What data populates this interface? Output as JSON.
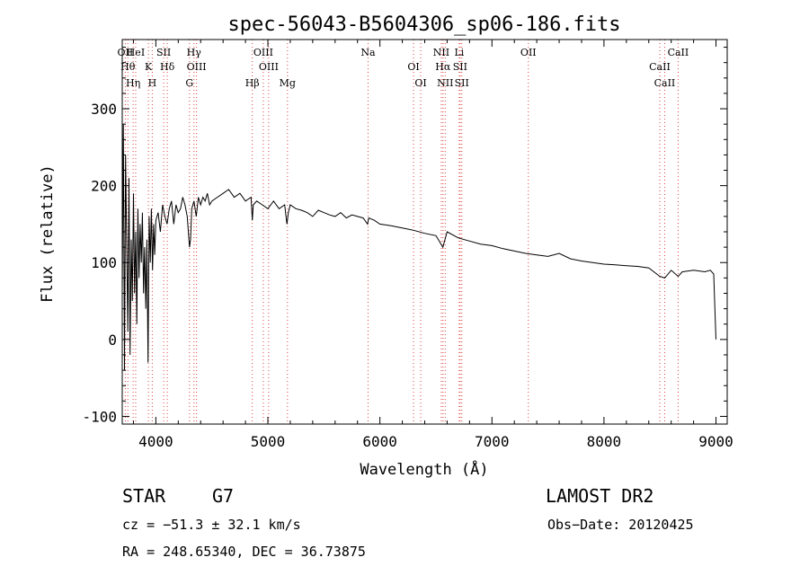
{
  "chart_data": {
    "type": "line",
    "title": "spec-56043-B5604306_sp06-186.fits",
    "xlabel": "Wavelength (Å)",
    "ylabel": "Flux (relative)",
    "xlim": [
      3700,
      9100
    ],
    "ylim": [
      -110,
      390
    ],
    "xticks": [
      4000,
      5000,
      6000,
      7000,
      8000,
      9000
    ],
    "yticks": [
      -100,
      0,
      100,
      200,
      300
    ],
    "grid": false,
    "series": [
      {
        "name": "spectrum",
        "x": [
          3700,
          3710,
          3720,
          3730,
          3740,
          3750,
          3760,
          3770,
          3780,
          3790,
          3800,
          3810,
          3820,
          3830,
          3840,
          3850,
          3860,
          3870,
          3880,
          3890,
          3900,
          3910,
          3920,
          3930,
          3940,
          3950,
          3960,
          3970,
          3980,
          3990,
          4000,
          4020,
          4040,
          4060,
          4080,
          4100,
          4120,
          4140,
          4160,
          4180,
          4200,
          4220,
          4240,
          4260,
          4280,
          4300,
          4310,
          4320,
          4340,
          4360,
          4380,
          4400,
          4420,
          4440,
          4460,
          4480,
          4500,
          4550,
          4600,
          4650,
          4700,
          4750,
          4800,
          4850,
          4861,
          4870,
          4900,
          4950,
          5000,
          5050,
          5100,
          5150,
          5170,
          5183,
          5200,
          5250,
          5300,
          5350,
          5400,
          5450,
          5500,
          5550,
          5600,
          5650,
          5700,
          5750,
          5800,
          5850,
          5890,
          5900,
          5950,
          6000,
          6100,
          6200,
          6300,
          6400,
          6500,
          6562,
          6600,
          6700,
          6800,
          6900,
          7000,
          7100,
          7200,
          7300,
          7400,
          7500,
          7600,
          7700,
          7800,
          7900,
          8000,
          8100,
          8200,
          8300,
          8400,
          8498,
          8542,
          8600,
          8662,
          8700,
          8800,
          8900,
          8950,
          8980,
          8990,
          9000
        ],
        "y": [
          60,
          280,
          -40,
          240,
          120,
          10,
          210,
          -20,
          130,
          50,
          190,
          60,
          140,
          20,
          170,
          80,
          150,
          100,
          165,
          60,
          120,
          40,
          130,
          -30,
          160,
          100,
          170,
          90,
          150,
          110,
          155,
          165,
          140,
          175,
          160,
          150,
          170,
          180,
          150,
          175,
          165,
          170,
          185,
          175,
          160,
          120,
          130,
          170,
          180,
          160,
          185,
          175,
          185,
          180,
          190,
          175,
          180,
          185,
          190,
          195,
          185,
          190,
          180,
          185,
          155,
          175,
          180,
          175,
          170,
          180,
          170,
          175,
          150,
          165,
          175,
          170,
          168,
          165,
          160,
          168,
          165,
          162,
          160,
          165,
          158,
          162,
          160,
          158,
          150,
          158,
          155,
          150,
          148,
          145,
          142,
          138,
          135,
          120,
          140,
          132,
          128,
          124,
          122,
          118,
          115,
          112,
          110,
          108,
          112,
          105,
          102,
          100,
          98,
          97,
          96,
          95,
          93,
          82,
          80,
          90,
          82,
          88,
          90,
          88,
          90,
          85,
          40,
          0
        ]
      }
    ],
    "lines": [
      {
        "label": "OII",
        "x": 3727
      },
      {
        "label": "Hθ",
        "x": 3750
      },
      {
        "label": "Hη",
        "x": 3797
      },
      {
        "label": "HeI",
        "x": 3820
      },
      {
        "label": "K",
        "x": 3934
      },
      {
        "label": "H",
        "x": 3968
      },
      {
        "label": "SII",
        "x": 4070
      },
      {
        "label": "Hδ",
        "x": 4102
      },
      {
        "label": "G",
        "x": 4300
      },
      {
        "label": "Hγ",
        "x": 4340
      },
      {
        "label": "OIII",
        "x": 4363
      },
      {
        "label": "Hβ",
        "x": 4861
      },
      {
        "label": "OIII",
        "x": 4959
      },
      {
        "label": "OIII",
        "x": 5007
      },
      {
        "label": "Mg",
        "x": 5175
      },
      {
        "label": "Na",
        "x": 5894
      },
      {
        "label": "OI",
        "x": 6300
      },
      {
        "label": "OI",
        "x": 6364
      },
      {
        "label": "NII",
        "x": 6548
      },
      {
        "label": "Hα",
        "x": 6563
      },
      {
        "label": "NII",
        "x": 6583
      },
      {
        "label": "Li",
        "x": 6708
      },
      {
        "label": "SII",
        "x": 6716
      },
      {
        "label": "SII",
        "x": 6731
      },
      {
        "label": "OII",
        "x": 7325
      },
      {
        "label": "CaII",
        "x": 8498
      },
      {
        "label": "CaII",
        "x": 8542
      },
      {
        "label": "CaII",
        "x": 8662
      }
    ]
  },
  "info": {
    "class": "STAR",
    "subclass": "G7",
    "survey": "LAMOST DR2",
    "cz": "cz = −51.3 ± 32.1 km/s",
    "obs_date": "Obs−Date: 20120425",
    "coords": "RA = 248.65340, DEC =  36.73875"
  },
  "colors": {
    "axis": "#000000",
    "line": "#000000",
    "marker": "#e04040"
  }
}
